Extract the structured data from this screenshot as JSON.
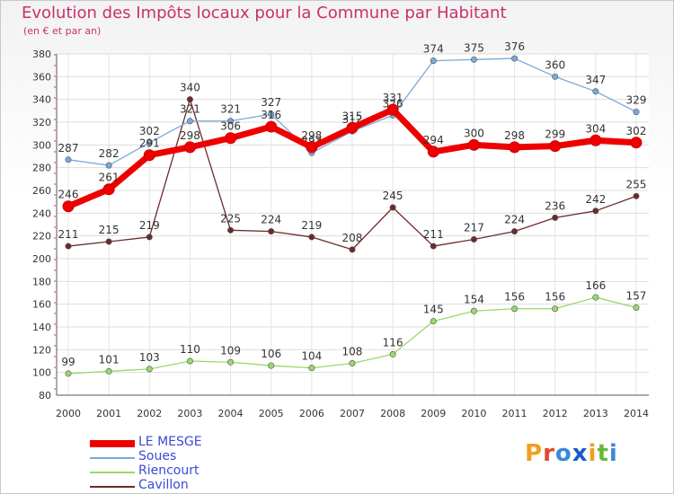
{
  "title": "Evolution des Impôts locaux pour la Commune par Habitant",
  "subtitle": "(en € et par an)",
  "logo": {
    "parts": [
      {
        "text": "P",
        "color": "#f0a020"
      },
      {
        "text": "r",
        "color": "#e04a2a"
      },
      {
        "text": "o",
        "color": "#3a8ad8"
      },
      {
        "text": "x",
        "color": "#1a5ac8"
      },
      {
        "text": "i",
        "color": "#f0a020"
      },
      {
        "text": "t",
        "color": "#6ab83a"
      },
      {
        "text": "i",
        "color": "#3a8ad8"
      }
    ]
  },
  "chart_data": {
    "type": "line",
    "title": "Evolution des Impôts locaux pour la Commune par Habitant",
    "ylabel": "(en € et par an)",
    "xlabel": "",
    "ylim": [
      80,
      380
    ],
    "yticks": [
      80,
      100,
      120,
      140,
      160,
      180,
      200,
      220,
      240,
      260,
      280,
      300,
      320,
      340,
      360,
      380
    ],
    "grid": true,
    "categories": [
      "2000",
      "2001",
      "2002",
      "2003",
      "2004",
      "2005",
      "2006",
      "2007",
      "2008",
      "2009",
      "2010",
      "2011",
      "2012",
      "2013",
      "2014"
    ],
    "series": [
      {
        "name": "Cavillon",
        "color": "#6e2a2a",
        "values": [
          211,
          215,
          219,
          340,
          225,
          224,
          219,
          208,
          245,
          211,
          217,
          224,
          236,
          242,
          255
        ]
      },
      {
        "name": "Riencourt",
        "color": "#9ad86a",
        "values": [
          99,
          101,
          103,
          110,
          109,
          106,
          104,
          108,
          116,
          145,
          154,
          156,
          156,
          166,
          157
        ]
      },
      {
        "name": "Soues",
        "color": "#7aa8d8",
        "values": [
          287,
          282,
          302,
          321,
          321,
          327,
          293,
          312,
          326,
          374,
          375,
          376,
          360,
          347,
          329
        ]
      },
      {
        "name": "LE MESGE",
        "color": "#ee0000",
        "values": [
          246,
          261,
          291,
          298,
          306,
          316,
          298,
          315,
          331,
          294,
          300,
          298,
          299,
          304,
          302
        ]
      }
    ],
    "legend": [
      "LE MESGE",
      "Soues",
      "Riencourt",
      "Cavillon"
    ],
    "legend_position": "bottom-left"
  }
}
